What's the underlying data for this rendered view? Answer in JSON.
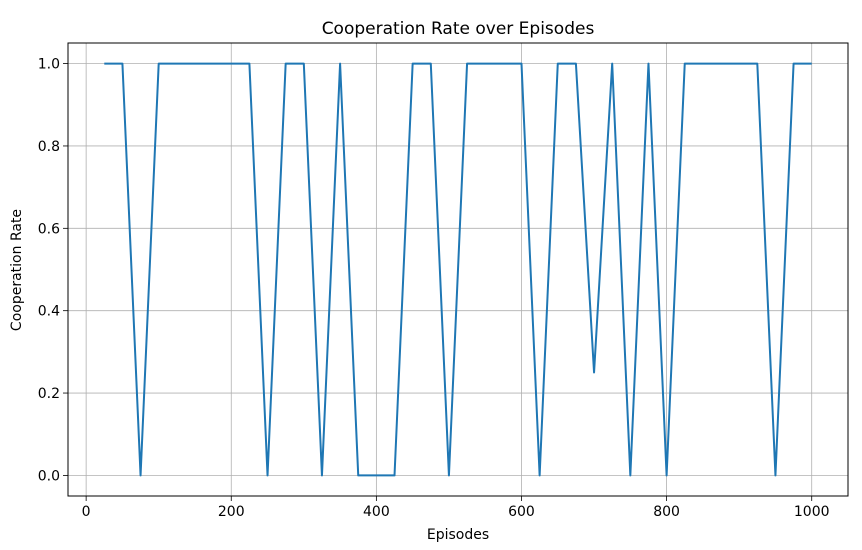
{
  "chart_data": {
    "type": "line",
    "title": "Cooperation Rate over Episodes",
    "xlabel": "Episodes",
    "ylabel": "Cooperation Rate",
    "xlim": [
      -25,
      1050
    ],
    "ylim": [
      -0.05,
      1.05
    ],
    "xticks": [
      0,
      200,
      400,
      600,
      800,
      1000
    ],
    "yticks": [
      0.0,
      0.2,
      0.4,
      0.6,
      0.8,
      1.0
    ],
    "xtick_labels": [
      "0",
      "200",
      "400",
      "600",
      "800",
      "1000"
    ],
    "ytick_labels": [
      "0.0",
      "0.2",
      "0.4",
      "0.6",
      "0.8",
      "1.0"
    ],
    "grid": true,
    "series": [
      {
        "color": "#1f77b4",
        "x": [
          25,
          50,
          75,
          100,
          125,
          150,
          175,
          200,
          225,
          250,
          275,
          300,
          325,
          350,
          375,
          400,
          425,
          450,
          475,
          500,
          525,
          550,
          575,
          600,
          625,
          650,
          675,
          700,
          725,
          750,
          775,
          800,
          825,
          850,
          875,
          900,
          925,
          950,
          975,
          1000
        ],
        "y": [
          1,
          1,
          0,
          1,
          1,
          1,
          1,
          1,
          1,
          0,
          1,
          1,
          0,
          1,
          0,
          0,
          0,
          1,
          1,
          0,
          1,
          1,
          1,
          1,
          0,
          1,
          1,
          0.25,
          1,
          0,
          1,
          0,
          1,
          1,
          1,
          1,
          1,
          0,
          1,
          1
        ]
      }
    ]
  }
}
